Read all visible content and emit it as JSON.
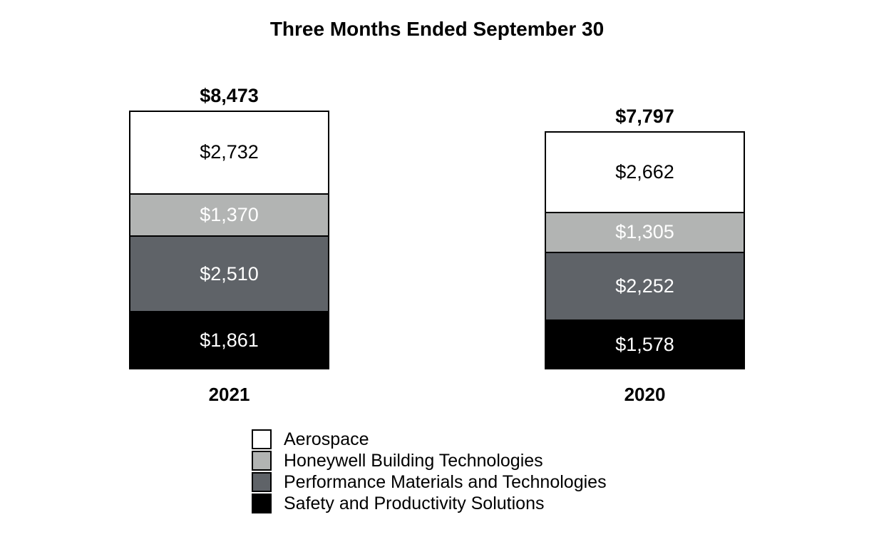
{
  "chart_data": {
    "type": "bar",
    "variant": "stacked",
    "title": "Three Months Ended September 30",
    "categories": [
      "2021",
      "2020"
    ],
    "total_labels": [
      "$8,473",
      "$7,797"
    ],
    "totals": [
      8473,
      7797
    ],
    "series": [
      {
        "name": "Aerospace",
        "values": [
          2732,
          2662
        ],
        "labels": [
          "$2,732",
          "$2,662"
        ],
        "color": "#ffffff",
        "label_color": "#000000"
      },
      {
        "name": "Honeywell Building Technologies",
        "values": [
          1370,
          1305
        ],
        "labels": [
          "$1,370",
          "$1,305"
        ],
        "color": "#b2b4b3",
        "label_color": "#ffffff"
      },
      {
        "name": "Performance Materials and Technologies",
        "values": [
          2510,
          2252
        ],
        "labels": [
          "$2,510",
          "$2,252"
        ],
        "color": "#5f6368",
        "label_color": "#ffffff"
      },
      {
        "name": "Safety and Productivity Solutions",
        "values": [
          1861,
          1578
        ],
        "labels": [
          "$1,861",
          "$1,578"
        ],
        "color": "#000000",
        "label_color": "#ffffff"
      }
    ],
    "legend": {
      "position": "bottom-left-of-center",
      "entries": [
        "Aerospace",
        "Honeywell Building Technologies",
        "Performance Materials and Technologies",
        "Safety and Productivity Solutions"
      ]
    },
    "layout": {
      "stacking_order": "top-to-bottom",
      "background": "#ffffff",
      "border_color": "#000000",
      "grid": "off"
    }
  }
}
